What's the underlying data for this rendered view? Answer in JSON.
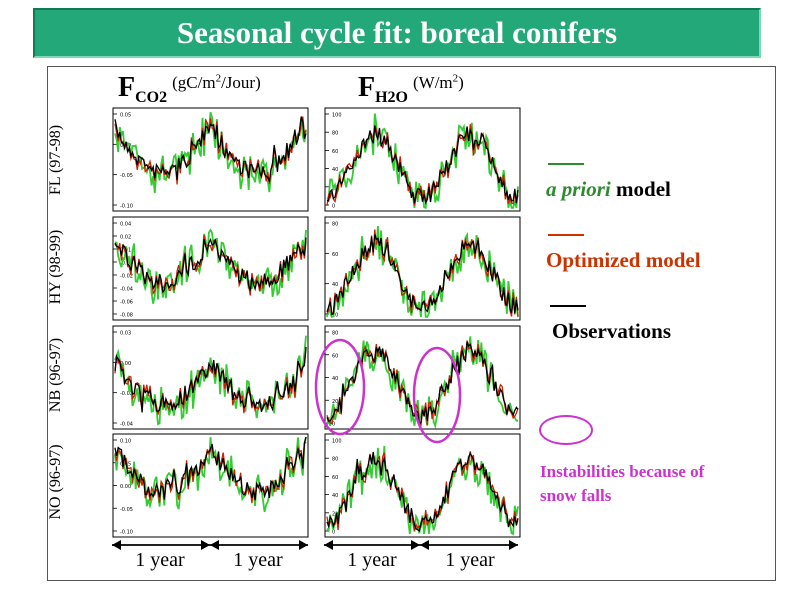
{
  "title": "Seasonal cycle fit: boreal conifers",
  "columns": [
    {
      "symbol": "F",
      "subscript": "CO2",
      "unit": "(g",
      "unit_mid": "C/m",
      "unit_sup": "2",
      "unit_end": "/Jour)"
    },
    {
      "symbol": "F",
      "subscript": "H2O",
      "unit": "(W/m",
      "unit_mid": "",
      "unit_sup": "2",
      "unit_end": ")"
    }
  ],
  "rows": [
    "FL (97-98)",
    "HY (98-99)",
    "NB (96-97)",
    "NO (96-97)"
  ],
  "legend": {
    "prior": {
      "italic": "a priori",
      "rest": " model",
      "color_italic": "#2e8b2e",
      "color_rest": "#000000"
    },
    "optimized": {
      "text": "Optimized model",
      "color": "#cc3300"
    },
    "observations": {
      "text": "Observations",
      "color": "#000000"
    },
    "instability": {
      "text": "Instabilities because of snow falls",
      "color": "#cc33cc"
    }
  },
  "time_axis": {
    "labels": [
      "1 year",
      "1 year",
      "1 year",
      "1 year"
    ]
  },
  "colors": {
    "title_bg": "#23a87a",
    "prior": "#33cc33",
    "optimized": "#cc2200",
    "observations": "#000000",
    "highlight": "#cc33cc"
  },
  "chart_data": {
    "type": "line",
    "series": [
      {
        "name": "a priori model"
      },
      {
        "name": "Optimized model"
      },
      {
        "name": "Observations"
      }
    ],
    "panels": [
      {
        "row": "FL (97-98)",
        "variable": "FCO2",
        "yticks": [
          "0.05",
          "0.00",
          "-0.05",
          "-0.10"
        ],
        "ylim": [
          -0.11,
          0.06
        ]
      },
      {
        "row": "FL (97-98)",
        "variable": "FH2O",
        "yticks": [
          "100",
          "80",
          "60",
          "40",
          "20",
          "0"
        ],
        "ylim": [
          0,
          100
        ]
      },
      {
        "row": "HY (98-99)",
        "variable": "FCO2",
        "yticks": [
          "0.04",
          "0.02",
          "0.01",
          "-0.00",
          "-0.02",
          "-0.04",
          "-0.06",
          "-0.08"
        ],
        "ylim": [
          -0.08,
          0.04
        ]
      },
      {
        "row": "HY (98-99)",
        "variable": "FH2O",
        "yticks": [
          "80",
          "60",
          "40",
          "20"
        ],
        "ylim": [
          10,
          85
        ]
      },
      {
        "row": "NB (96-97)",
        "variable": "FCO2",
        "yticks": [
          "0.03",
          "0.00",
          "-0.02",
          "-0.04"
        ],
        "ylim": [
          -0.05,
          0.03
        ]
      },
      {
        "row": "NB (96-97)",
        "variable": "FH2O",
        "yticks": [
          "80",
          "60",
          "40",
          "20",
          "0"
        ],
        "ylim": [
          0,
          85
        ]
      },
      {
        "row": "NO (96-97)",
        "variable": "FCO2",
        "yticks": [
          "0.10",
          "0.05",
          "0.00",
          "-0.05",
          "-0.10"
        ],
        "ylim": [
          -0.11,
          0.11
        ]
      },
      {
        "row": "NO (96-97)",
        "variable": "FH2O",
        "yticks": [
          "100",
          "80",
          "60",
          "40",
          "20",
          "0"
        ],
        "ylim": [
          0,
          100
        ]
      }
    ]
  }
}
